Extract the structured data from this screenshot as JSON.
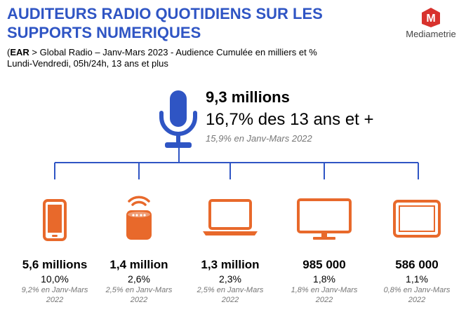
{
  "header": {
    "title_line1": "AUDITEURS RADIO QUOTIDIENS SUR LES",
    "title_line2": "SUPPORTS NUMERIQUES",
    "source_bold": "EAR",
    "source_rest": " > Global Radio – Janv-Mars 2023 - Audience Cumulée en milliers et %",
    "scope": "Lundi-Vendredi, 05h/24h, 13 ans et plus",
    "open_paren": "("
  },
  "logo": {
    "letter": "M",
    "name": "Mediametrie"
  },
  "total": {
    "value": "9,3 millions",
    "pct": "16,7%",
    "pct_suffix": " des 13 ans et +",
    "previous": "15,9% en Janv-Mars 2022"
  },
  "devices": [
    {
      "icon": "smartphone-icon",
      "value": "5,6 millions",
      "pct": "10,0%",
      "prev_line1": "9,2% en Janv-Mars",
      "prev_line2": "2022"
    },
    {
      "icon": "smart-speaker-icon",
      "value": "1,4 million",
      "pct": "2,6%",
      "prev_line1": "2,5% en Janv-Mars",
      "prev_line2": "2022"
    },
    {
      "icon": "laptop-icon",
      "value": "1,3 million",
      "pct": "2,3%",
      "prev_line1": "2,5% en Janv-Mars",
      "prev_line2": "2022"
    },
    {
      "icon": "monitor-icon",
      "value": "985 000",
      "pct": "1,8%",
      "prev_line1": "1,8% en Janv-Mars",
      "prev_line2": "2022"
    },
    {
      "icon": "tablet-icon",
      "value": "586 000",
      "pct": "1,1%",
      "prev_line1": "0,8% en Janv-Mars",
      "prev_line2": "2022"
    }
  ],
  "colors": {
    "title": "#2f55c4",
    "accent_blue": "#2f55c4",
    "icon_orange": "#e8692b",
    "logo_red": "#d8322d"
  }
}
